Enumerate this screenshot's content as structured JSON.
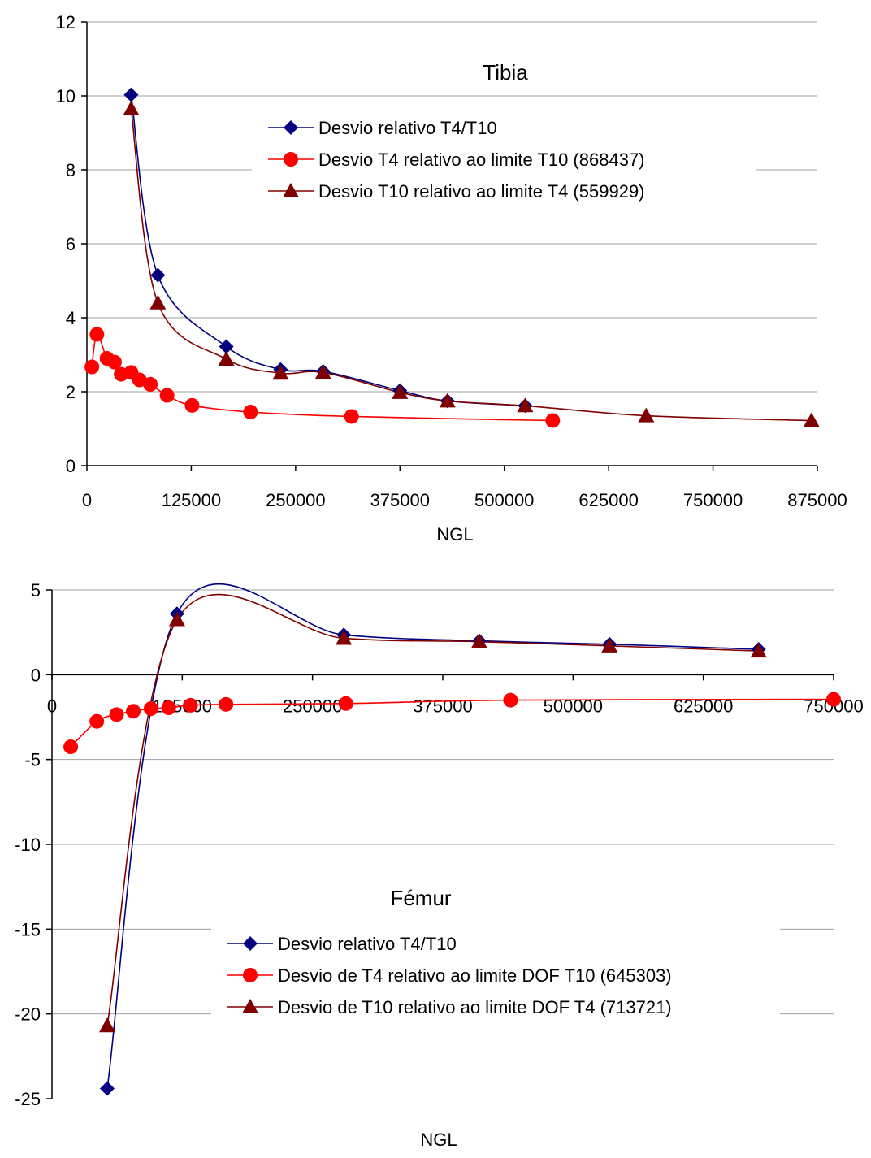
{
  "chart_data": [
    {
      "type": "line",
      "title": "Tibia",
      "xlabel": "NGL",
      "ylabel": "",
      "xlim": [
        0,
        875000
      ],
      "ylim": [
        0,
        12
      ],
      "xticks": [
        "0",
        "125000",
        "250000",
        "375000",
        "500000",
        "625000",
        "750000",
        "875000"
      ],
      "yticks": [
        "0",
        "2",
        "4",
        "6",
        "8",
        "10",
        "12"
      ],
      "grid": "horizontal",
      "legend_position": "top-right",
      "series": [
        {
          "name": "Desvio relativo T4/T10",
          "color": "#000080",
          "marker": "diamond",
          "points": [
            [
              53000,
              10.03
            ],
            [
              85000,
              5.15
            ],
            [
              167000,
              3.22
            ],
            [
              232000,
              2.6
            ],
            [
              283000,
              2.55
            ],
            [
              375000,
              2.03
            ],
            [
              432000,
              1.75
            ],
            [
              525000,
              1.62
            ]
          ]
        },
        {
          "name": "Desvio T4 relativo ao limite T10 (868437)",
          "color": "#ff0000",
          "marker": "circle",
          "points": [
            [
              6000,
              2.67
            ],
            [
              12000,
              3.55
            ],
            [
              24000,
              2.9
            ],
            [
              33000,
              2.8
            ],
            [
              41000,
              2.47
            ],
            [
              53000,
              2.52
            ],
            [
              63000,
              2.32
            ],
            [
              76000,
              2.2
            ],
            [
              96000,
              1.9
            ],
            [
              126000,
              1.63
            ],
            [
              196000,
              1.45
            ],
            [
              317000,
              1.33
            ],
            [
              558000,
              1.22
            ]
          ]
        },
        {
          "name": "Desvio T10 relativo ao limite T4 (559929)",
          "color": "#800000",
          "marker": "triangle",
          "points": [
            [
              53000,
              9.65
            ],
            [
              85000,
              4.4
            ],
            [
              167000,
              2.88
            ],
            [
              232000,
              2.5
            ],
            [
              283000,
              2.52
            ],
            [
              375000,
              1.98
            ],
            [
              432000,
              1.75
            ],
            [
              525000,
              1.62
            ],
            [
              670000,
              1.35
            ],
            [
              868000,
              1.22
            ]
          ]
        }
      ]
    },
    {
      "type": "line",
      "title": "Fémur",
      "xlabel": "NGL",
      "ylabel": "",
      "xlim": [
        0,
        750000
      ],
      "ylim": [
        -25,
        5
      ],
      "xticks": [
        "0",
        "125000",
        "250000",
        "375000",
        "500000",
        "625000",
        "750000"
      ],
      "yticks": [
        "-25",
        "-20",
        "-15",
        "-10",
        "-5",
        "0",
        "5"
      ],
      "grid": "horizontal",
      "legend_position": "bottom-center",
      "series": [
        {
          "name": "Desvio relativo T4/T10",
          "color": "#000080",
          "marker": "diamond",
          "points": [
            [
              53000,
              -24.4
            ],
            [
              120000,
              3.6
            ],
            [
              280000,
              2.35
            ],
            [
              410000,
              2.0
            ],
            [
              535000,
              1.8
            ],
            [
              678000,
              1.5
            ]
          ]
        },
        {
          "name": "Desvio de T4 relativo ao limite DOF T10 (645303)",
          "color": "#ff0000",
          "marker": "circle",
          "points": [
            [
              18000,
              -4.25
            ],
            [
              43000,
              -2.75
            ],
            [
              62000,
              -2.35
            ],
            [
              78000,
              -2.15
            ],
            [
              95000,
              -2.0
            ],
            [
              112000,
              -1.95
            ],
            [
              133000,
              -1.8
            ],
            [
              167000,
              -1.75
            ],
            [
              282000,
              -1.7
            ],
            [
              440000,
              -1.5
            ],
            [
              750000,
              -1.45
            ]
          ]
        },
        {
          "name": "Desvio de T10 relativo ao limite DOF T4 (713721)",
          "color": "#800000",
          "marker": "triangle",
          "points": [
            [
              53000,
              -20.7
            ],
            [
              120000,
              3.25
            ],
            [
              280000,
              2.15
            ],
            [
              410000,
              1.95
            ],
            [
              535000,
              1.7
            ],
            [
              678000,
              1.4
            ]
          ]
        }
      ]
    }
  ]
}
